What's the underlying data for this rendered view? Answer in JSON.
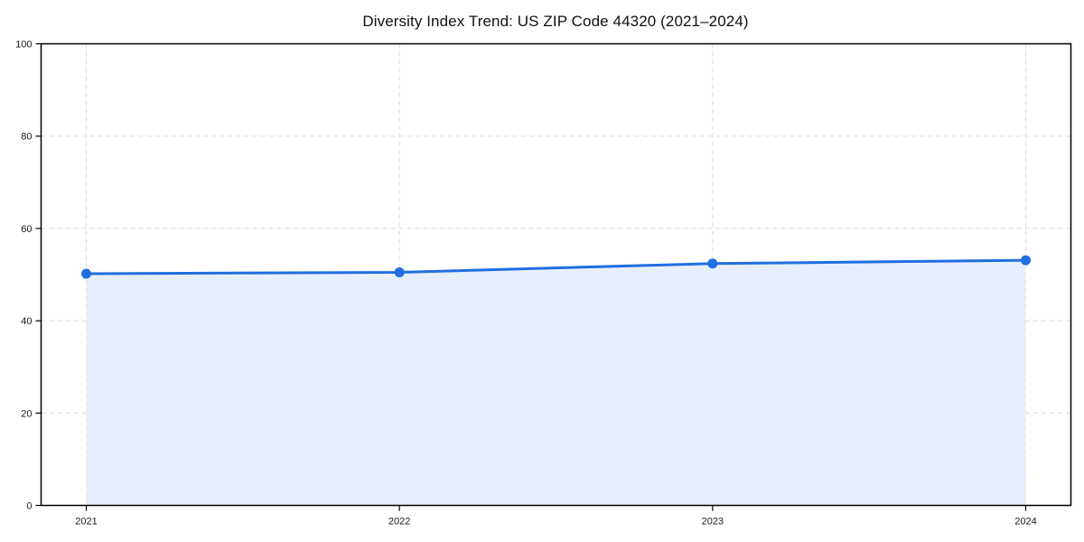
{
  "chart_data": {
    "type": "area",
    "title": "Diversity Index Trend: US ZIP Code 44320 (2021–2024)",
    "x": [
      2021,
      2022,
      2023,
      2024
    ],
    "x_tick_labels": [
      "2021",
      "2022",
      "2023",
      "2024"
    ],
    "series": [
      {
        "name": "Diversity Index",
        "values": [
          50.2,
          50.5,
          52.4,
          53.1
        ]
      }
    ],
    "xlabel": "",
    "ylabel": "",
    "ylim": [
      0,
      100
    ],
    "y_ticks": [
      0,
      20,
      40,
      60,
      80,
      100
    ],
    "grid": true,
    "grid_style": "dashed",
    "legend_position": "none",
    "colors": {
      "line": "#1f6fe0",
      "marker": "#1f6fe0",
      "fill": "#e8effc",
      "grid": "#dcdcdc",
      "spine": "#000000",
      "tick_text": "#1a1a1a",
      "background": "#ffffff"
    },
    "marker_shape": "circle",
    "tick_font_size": 11,
    "title_font_size": 17
  }
}
